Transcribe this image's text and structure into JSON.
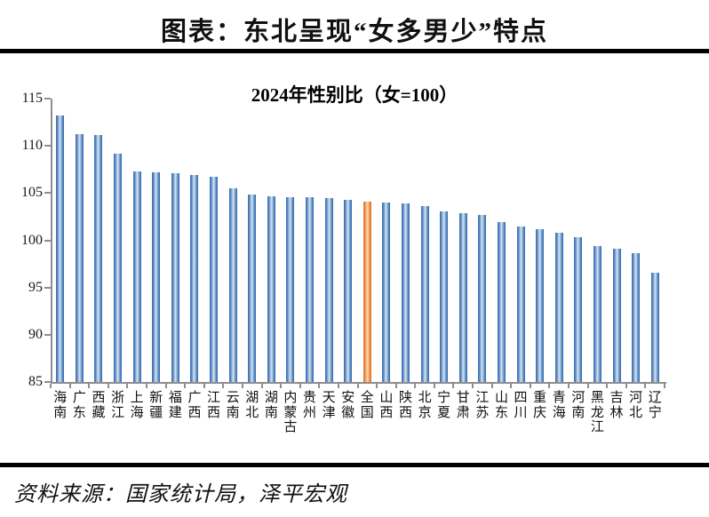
{
  "figure": {
    "title": "图表：东北呈现“女多男少”特点",
    "source": "资料来源：国家统计局，泽平宏观"
  },
  "chart_data": {
    "type": "bar",
    "title": "2024年性别比（女=100）",
    "categories": [
      "海南",
      "广东",
      "西藏",
      "浙江",
      "上海",
      "新疆",
      "福建",
      "广西",
      "江西",
      "云南",
      "湖北",
      "湖南",
      "内蒙古",
      "贵州",
      "天津",
      "安徽",
      "全国",
      "山西",
      "陕西",
      "北京",
      "宁夏",
      "甘肃",
      "江苏",
      "山东",
      "四川",
      "重庆",
      "青海",
      "河南",
      "黑龙江",
      "吉林",
      "河北",
      "辽宁"
    ],
    "values": [
      113.2,
      111.2,
      111.1,
      109.2,
      107.3,
      107.2,
      107.1,
      106.9,
      106.7,
      105.5,
      104.8,
      104.7,
      104.6,
      104.6,
      104.5,
      104.3,
      104.1,
      104.0,
      103.9,
      103.6,
      103.1,
      102.9,
      102.7,
      101.9,
      101.5,
      101.2,
      100.8,
      100.3,
      99.4,
      99.1,
      98.6,
      96.6
    ],
    "highlight_category": "全国",
    "highlight_index": 16,
    "xlabel": "",
    "ylabel": "",
    "ylim": [
      85,
      115
    ],
    "yticks": [
      115,
      110,
      105,
      100,
      95,
      90,
      85
    ],
    "grid": false,
    "legend": "none",
    "label_orientation": "vertical-stacked",
    "colors": {
      "bar_edge": "#3e73b3",
      "bar_mid": "#85aad4",
      "bar_center": "#d8e4f2",
      "highlight_edge": "#e5752a",
      "highlight_mid": "#f3a869",
      "highlight_center": "#fbd9b8",
      "axis": "#8e8e8e",
      "text": "#000000"
    }
  }
}
